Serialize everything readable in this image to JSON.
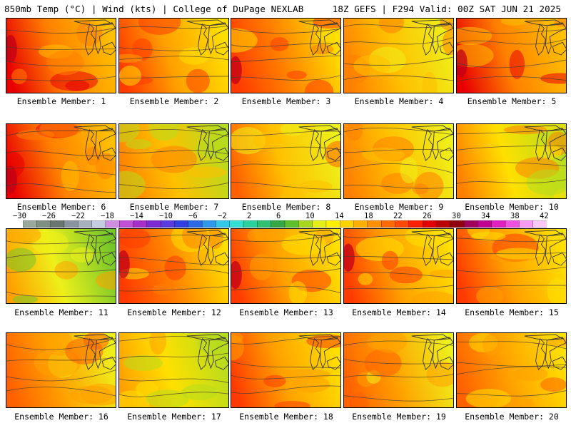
{
  "header": {
    "left": "850mb Temp (°C) | Wind (kts) | College of DuPage NEXLAB",
    "right": "18Z GEFS | F294 Valid: 00Z SAT JUN 21 2025"
  },
  "members": [
    {
      "label": "Ensemble Member: 1",
      "warmth": 0.72
    },
    {
      "label": "Ensemble Member: 2",
      "warmth": 0.6
    },
    {
      "label": "Ensemble Member: 3",
      "warmth": 0.65
    },
    {
      "label": "Ensemble Member: 4",
      "warmth": 0.48
    },
    {
      "label": "Ensemble Member: 5",
      "warmth": 0.7
    },
    {
      "label": "Ensemble Member: 6",
      "warmth": 0.72
    },
    {
      "label": "Ensemble Member: 7",
      "warmth": 0.45
    },
    {
      "label": "Ensemble Member: 8",
      "warmth": 0.52
    },
    {
      "label": "Ensemble Member: 9",
      "warmth": 0.48
    },
    {
      "label": "Ensemble Member: 10",
      "warmth": 0.4
    },
    {
      "label": "Ensemble Member: 11",
      "warmth": 0.3
    },
    {
      "label": "Ensemble Member: 12",
      "warmth": 0.66
    },
    {
      "label": "Ensemble Member: 13",
      "warmth": 0.64
    },
    {
      "label": "Ensemble Member: 14",
      "warmth": 0.64
    },
    {
      "label": "Ensemble Member: 15",
      "warmth": 0.6
    },
    {
      "label": "Ensemble Member: 16",
      "warmth": 0.55
    },
    {
      "label": "Ensemble Member: 17",
      "warmth": 0.38
    },
    {
      "label": "Ensemble Member: 18",
      "warmth": 0.62
    },
    {
      "label": "Ensemble Member: 19",
      "warmth": 0.56
    },
    {
      "label": "Ensemble Member: 20",
      "warmth": 0.58
    }
  ],
  "colorbar": {
    "ticks": [
      "−30",
      "−26",
      "−22",
      "−18",
      "−14",
      "−10",
      "−6",
      "−2",
      "2",
      "6",
      "10",
      "14",
      "18",
      "22",
      "26",
      "30",
      "34",
      "38",
      "42"
    ],
    "colors": [
      "#9aa89c",
      "#7f8f84",
      "#6b7570",
      "#8a94a0",
      "#a8b0c0",
      "#c6cde0",
      "#cf8ee0",
      "#c24fd8",
      "#a72fc9",
      "#7a2ad0",
      "#5a3be0",
      "#3040e0",
      "#2a6ae6",
      "#2f98ea",
      "#33c7e8",
      "#34e0d0",
      "#2bd29e",
      "#2fc070",
      "#34a846",
      "#5cbf2c",
      "#a6d81e",
      "#e6ee18",
      "#fff000",
      "#ffd200",
      "#ffb000",
      "#ff9000",
      "#ff6a00",
      "#ff4800",
      "#ff2000",
      "#e00000",
      "#b80000",
      "#900010",
      "#a0005a",
      "#c00090",
      "#e020c0",
      "#f050e0",
      "#f89af0",
      "#fbc8f8"
    ]
  }
}
